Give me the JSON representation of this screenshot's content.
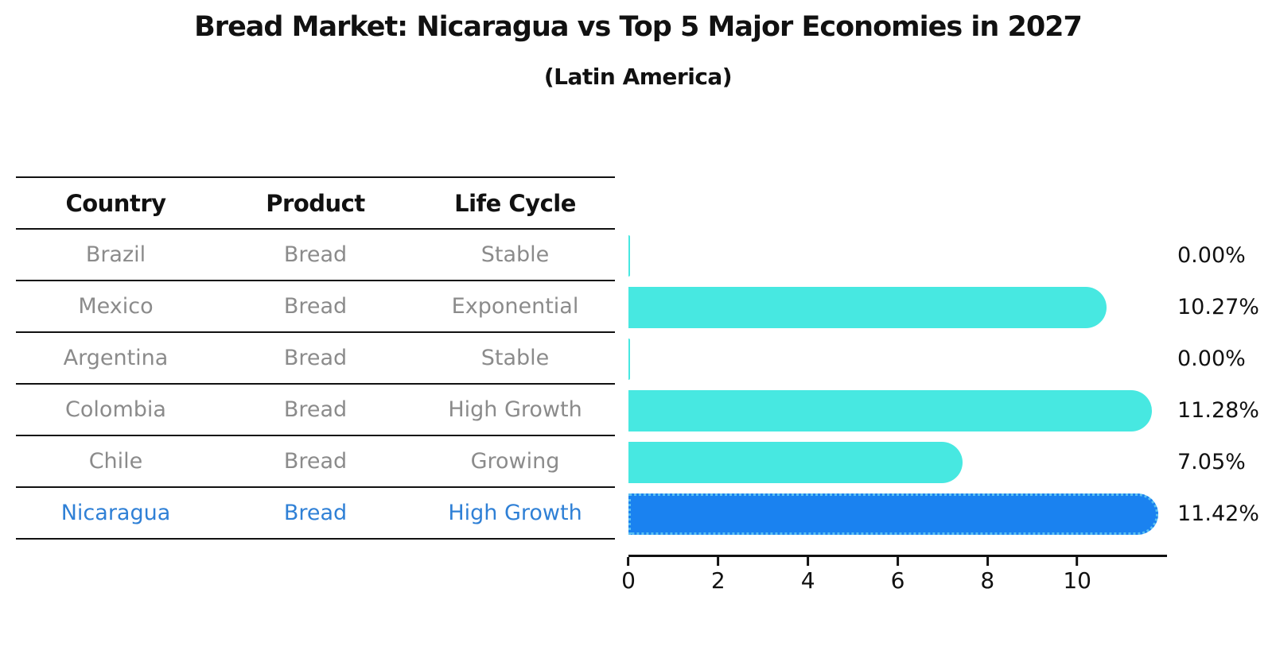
{
  "title": "Bread Market: Nicaragua vs Top 5 Major Economies in 2027",
  "subtitle": "(Latin America)",
  "table": {
    "headers": {
      "country": "Country",
      "product": "Product",
      "life_cycle": "Life Cycle"
    }
  },
  "rows": [
    {
      "country": "Brazil",
      "product": "Bread",
      "life_cycle": "Stable",
      "value": 0.0,
      "value_label": "0.00%",
      "highlight": false
    },
    {
      "country": "Mexico",
      "product": "Bread",
      "life_cycle": "Exponential",
      "value": 10.27,
      "value_label": "10.27%",
      "highlight": false
    },
    {
      "country": "Argentina",
      "product": "Bread",
      "life_cycle": "Stable",
      "value": 0.0,
      "value_label": "0.00%",
      "highlight": false
    },
    {
      "country": "Colombia",
      "product": "Bread",
      "life_cycle": "High Growth",
      "value": 11.28,
      "value_label": "11.28%",
      "highlight": false
    },
    {
      "country": "Chile",
      "product": "Bread",
      "life_cycle": "Growing",
      "value": 7.05,
      "value_label": "7.05%",
      "highlight": false
    },
    {
      "country": "Nicaragua",
      "product": "Bread",
      "life_cycle": "High Growth",
      "value": 11.42,
      "value_label": "11.42%",
      "highlight": true
    }
  ],
  "chart_data": {
    "type": "bar",
    "orientation": "horizontal",
    "title": "Bread Market: Nicaragua vs Top 5 Major Economies in 2027",
    "subtitle": "(Latin America)",
    "categories": [
      "Brazil",
      "Mexico",
      "Argentina",
      "Colombia",
      "Chile",
      "Nicaragua"
    ],
    "values": [
      0.0,
      10.27,
      0.0,
      11.28,
      7.05,
      11.42
    ],
    "data_labels": [
      "0.00%",
      "10.27%",
      "0.00%",
      "11.28%",
      "7.05%",
      "11.42%"
    ],
    "xlabel": "",
    "ylabel": "",
    "xlim": [
      0,
      12
    ],
    "x_ticks": [
      0,
      2,
      4,
      6,
      8,
      10
    ],
    "grid": false,
    "legend": false,
    "highlight_index": 5
  },
  "colors": {
    "bar": "#47e8e1",
    "highlight_bar": "#1a82f0",
    "highlight_border": "#5bc0f0",
    "highlight_text": "#2f80d6",
    "row_text": "#8b8b8b",
    "header_text": "#111111",
    "line": "#111111"
  }
}
